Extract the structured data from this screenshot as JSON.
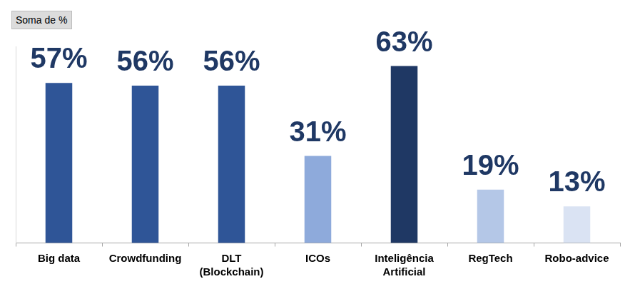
{
  "chart_data": {
    "type": "bar",
    "title": "Soma de %",
    "categories": [
      "Big data",
      "Crowdfunding",
      "DLT\n(Blockchain)",
      "ICOs",
      "Inteligência\nArtificial",
      "RegTech",
      "Robo-advice"
    ],
    "values": [
      57,
      56,
      56,
      31,
      63,
      19,
      13
    ],
    "value_labels": [
      "57%",
      "56%",
      "56%",
      "31%",
      "63%",
      "19%",
      "13%"
    ],
    "colors": [
      "#2f5597",
      "#2f5597",
      "#2f5597",
      "#8eaadb",
      "#1f3864",
      "#b4c7e7",
      "#dae3f3"
    ],
    "ylim": [
      0,
      70
    ],
    "grid": false,
    "data_labels": true,
    "tick_labels": "x"
  }
}
